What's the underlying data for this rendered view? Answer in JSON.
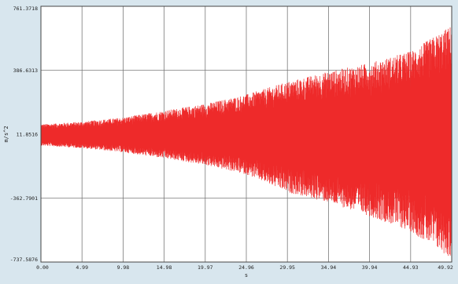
{
  "chart_data": {
    "type": "line",
    "xlabel": "s",
    "ylabel": "m/s^2",
    "xlim": [
      0.0,
      49.93
    ],
    "ylim": [
      -737.5876,
      761.3718
    ],
    "x_ticks": [
      "0.00",
      "4.99",
      "9.98",
      "14.98",
      "19.97",
      "24.96",
      "29.95",
      "34.94",
      "39.94",
      "44.93",
      "49.92"
    ],
    "y_ticks": [
      "761.3718",
      "386.6313",
      "11.8516",
      "-362.7901",
      "-737.5876"
    ],
    "grid": true,
    "series": [
      {
        "color": "#ee2a2a",
        "envelope": {
          "x": [
            0,
            5,
            10,
            15,
            20,
            25,
            30,
            35,
            40,
            45,
            49.93
          ],
          "upper": [
            70,
            85,
            110,
            150,
            190,
            245,
            320,
            380,
            430,
            500,
            650
          ],
          "lower": [
            -55,
            -70,
            -95,
            -130,
            -170,
            -225,
            -330,
            -390,
            -470,
            -560,
            -720
          ]
        }
      }
    ]
  }
}
